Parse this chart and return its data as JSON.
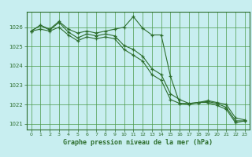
{
  "title": "Graphe pression niveau de la mer (hPa)",
  "background_color": "#c8eef0",
  "grid_color": "#4a9a4a",
  "line_color": "#2d6e2d",
  "label_color": "#2d6e2d",
  "spine_color": "#2d6e2d",
  "xlim": [
    -0.5,
    23.5
  ],
  "ylim": [
    1020.7,
    1026.8
  ],
  "yticks": [
    1021,
    1022,
    1023,
    1024,
    1025,
    1026
  ],
  "xticks": [
    0,
    1,
    2,
    3,
    4,
    5,
    6,
    7,
    8,
    9,
    10,
    11,
    12,
    13,
    14,
    15,
    16,
    17,
    18,
    19,
    20,
    21,
    22,
    23
  ],
  "series": [
    [
      1025.8,
      1026.1,
      1025.9,
      1026.3,
      1025.9,
      1025.7,
      1025.8,
      1025.7,
      1025.8,
      1025.9,
      1026.0,
      1026.55,
      1025.95,
      1025.6,
      1025.6,
      1023.45,
      1022.05,
      1022.0,
      1022.1,
      1022.2,
      1022.1,
      1022.0,
      1021.3,
      1021.2
    ],
    [
      1025.8,
      1026.1,
      1025.85,
      1026.25,
      1025.75,
      1025.45,
      1025.65,
      1025.55,
      1025.65,
      1025.55,
      1025.05,
      1024.85,
      1024.5,
      1023.85,
      1023.55,
      1022.55,
      1022.25,
      1022.05,
      1022.1,
      1022.15,
      1022.05,
      1021.85,
      1021.15,
      1021.15
    ],
    [
      1025.8,
      1025.9,
      1025.8,
      1026.0,
      1025.6,
      1025.3,
      1025.5,
      1025.4,
      1025.5,
      1025.4,
      1024.85,
      1024.55,
      1024.25,
      1023.55,
      1023.25,
      1022.25,
      1022.05,
      1022.05,
      1022.1,
      1022.1,
      1021.95,
      1021.75,
      1021.05,
      1021.15
    ]
  ]
}
